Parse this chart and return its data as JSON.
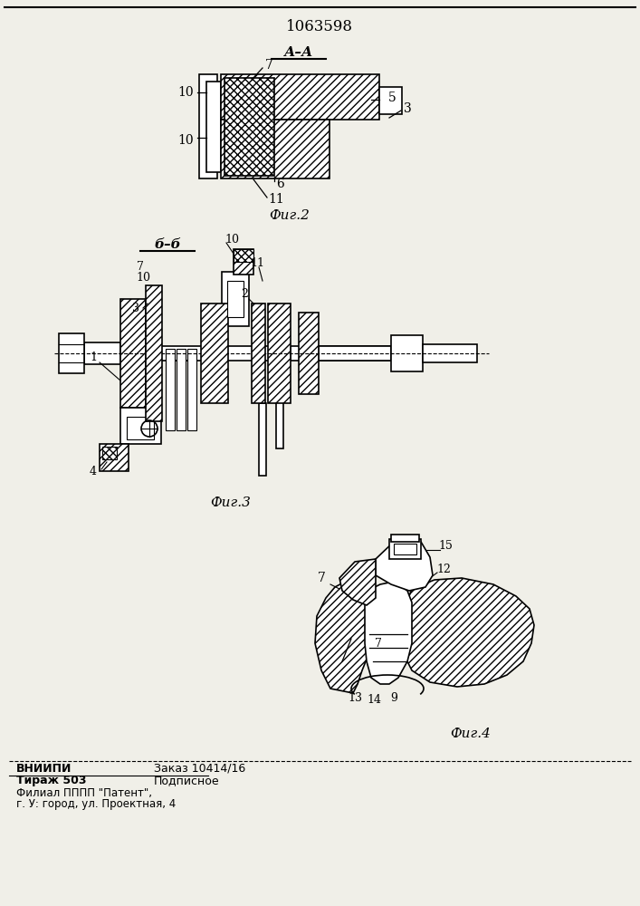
{
  "patent_number": "1063598",
  "fig2_label": "А–А",
  "fig3_label": "б–б",
  "fig2_caption": "Фиг.2",
  "fig3_caption": "Фиг.3",
  "fig4_caption": "Фиг.4",
  "footer_line1_bold": "ВНИИПИ",
  "footer_line1_right": "Заказ 10414/16",
  "footer_line2_bold": "Тираж 503",
  "footer_line2_right": "Подписное",
  "footer_line3": "Филиал ПППП \"Патент\",",
  "footer_line4": "г. У: город, ул. Проектная, 4",
  "bg_color": "#f0efe8",
  "line_color": "#000000"
}
